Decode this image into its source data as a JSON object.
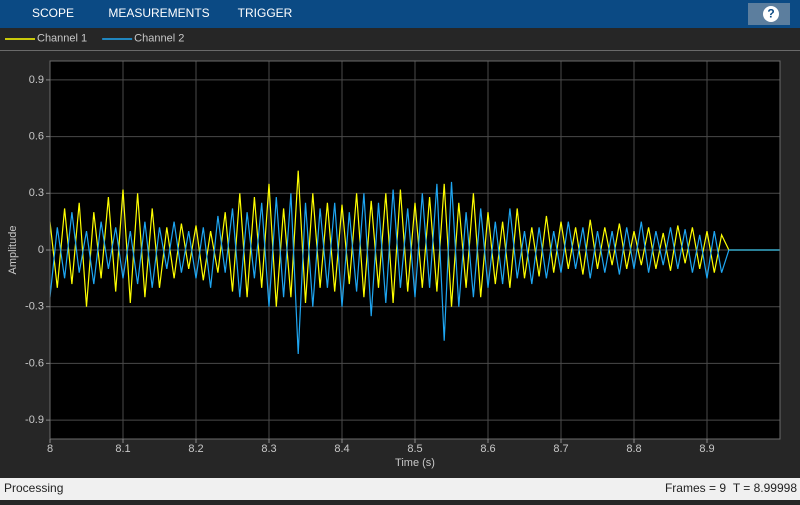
{
  "toolbar": {
    "tabs": [
      "SCOPE",
      "MEASUREMENTS",
      "TRIGGER"
    ],
    "help": "?"
  },
  "chart_data": {
    "type": "line",
    "xlabel": "Time (s)",
    "ylabel": "Amplitude",
    "x": [
      8.0,
      8.01,
      8.02,
      8.03,
      8.04,
      8.05,
      8.06,
      8.07,
      8.08,
      8.09,
      8.1,
      8.11,
      8.12,
      8.13,
      8.14,
      8.15,
      8.16,
      8.17,
      8.18,
      8.19,
      8.2,
      8.21,
      8.22,
      8.23,
      8.24,
      8.25,
      8.26,
      8.27,
      8.28,
      8.29,
      8.3,
      8.31,
      8.32,
      8.33,
      8.34,
      8.35,
      8.36,
      8.37,
      8.38,
      8.39,
      8.4,
      8.41,
      8.42,
      8.43,
      8.44,
      8.45,
      8.46,
      8.47,
      8.48,
      8.49,
      8.5,
      8.51,
      8.52,
      8.53,
      8.54,
      8.55,
      8.56,
      8.57,
      8.58,
      8.59,
      8.6,
      8.61,
      8.62,
      8.63,
      8.64,
      8.65,
      8.66,
      8.67,
      8.68,
      8.69,
      8.7,
      8.71,
      8.72,
      8.73,
      8.74,
      8.75,
      8.76,
      8.77,
      8.78,
      8.79,
      8.8,
      8.81,
      8.82,
      8.83,
      8.84,
      8.85,
      8.86,
      8.87,
      8.88,
      8.89,
      8.9,
      8.91,
      8.92,
      8.93,
      9.0
    ],
    "series": [
      {
        "name": "Channel 1",
        "color": "#ffff00",
        "values": [
          0.15,
          -0.2,
          0.22,
          -0.18,
          0.25,
          -0.3,
          0.2,
          -0.15,
          0.28,
          -0.22,
          0.32,
          -0.28,
          0.3,
          -0.25,
          0.22,
          -0.2,
          0.12,
          -0.15,
          0.14,
          -0.1,
          0.13,
          -0.16,
          0.1,
          -0.12,
          0.2,
          -0.22,
          0.3,
          -0.25,
          0.28,
          -0.2,
          0.35,
          -0.3,
          0.22,
          -0.25,
          0.42,
          -0.28,
          0.3,
          -0.2,
          0.25,
          -0.22,
          0.24,
          -0.18,
          0.3,
          -0.25,
          0.26,
          -0.2,
          0.3,
          -0.28,
          0.32,
          -0.22,
          0.25,
          -0.2,
          0.28,
          -0.22,
          0.35,
          -0.3,
          0.25,
          -0.2,
          0.3,
          -0.25,
          0.2,
          -0.18,
          0.15,
          -0.2,
          0.22,
          -0.15,
          0.12,
          -0.14,
          0.18,
          -0.12,
          0.15,
          -0.1,
          0.12,
          -0.13,
          0.16,
          -0.1,
          0.12,
          -0.08,
          0.14,
          -0.1,
          0.1,
          -0.08,
          0.12,
          -0.1,
          0.09,
          -0.11,
          0.13,
          -0.07,
          0.12,
          -0.1,
          0.1,
          -0.12,
          0.08,
          0,
          0
        ]
      },
      {
        "name": "Channel 2",
        "color": "#1ea6f2",
        "values": [
          -0.25,
          0.12,
          -0.15,
          0.2,
          -0.12,
          0.1,
          -0.18,
          0.15,
          -0.1,
          0.12,
          -0.15,
          0.1,
          -0.18,
          0.15,
          -0.2,
          0.12,
          -0.1,
          0.15,
          -0.12,
          0.1,
          -0.15,
          0.12,
          -0.2,
          0.18,
          -0.12,
          0.22,
          -0.25,
          0.2,
          -0.15,
          0.25,
          -0.3,
          0.28,
          -0.25,
          0.3,
          -0.55,
          0.25,
          -0.3,
          0.22,
          -0.2,
          0.25,
          -0.3,
          0.2,
          -0.22,
          0.3,
          -0.35,
          0.25,
          -0.28,
          0.32,
          -0.2,
          0.22,
          -0.25,
          0.3,
          -0.2,
          0.35,
          -0.48,
          0.36,
          -0.3,
          0.2,
          -0.25,
          0.22,
          -0.2,
          0.15,
          -0.18,
          0.22,
          -0.15,
          0.1,
          -0.18,
          0.12,
          -0.15,
          0.1,
          -0.12,
          0.15,
          -0.1,
          0.12,
          -0.15,
          0.1,
          -0.12,
          0.1,
          -0.13,
          0.12,
          -0.1,
          0.15,
          -0.12,
          0.1,
          -0.08,
          0.12,
          -0.1,
          0.11,
          -0.12,
          0.08,
          -0.15,
          0.1,
          -0.12,
          0,
          0
        ]
      }
    ],
    "xlim": [
      8,
      9
    ],
    "ylim": [
      -1,
      1
    ],
    "xticks": [
      8,
      8.1,
      8.2,
      8.3,
      8.4,
      8.5,
      8.6,
      8.7,
      8.8,
      8.9
    ],
    "yticks": [
      -0.9,
      -0.6,
      -0.3,
      0,
      0.3,
      0.6,
      0.9
    ],
    "grid": true,
    "legend": "top-left"
  },
  "status_bar": {
    "state": "Processing",
    "frames": "Frames = 9",
    "time": "T = 8.99998"
  }
}
